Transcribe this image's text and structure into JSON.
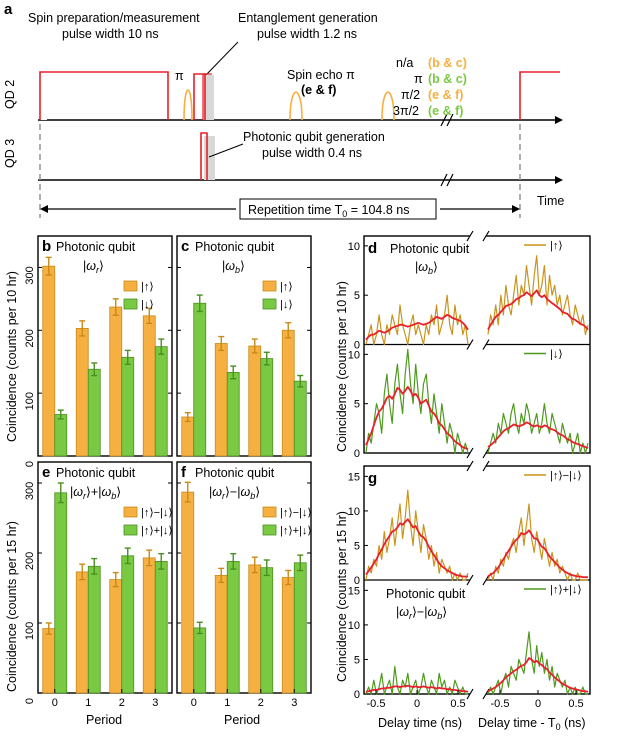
{
  "colors": {
    "orange": "#F5B041",
    "orange_edge": "#C98A1A",
    "green": "#7AC943",
    "green_edge": "#4A8F22",
    "red": "#E8202A",
    "gold_line": "#C8941E",
    "green_line": "#4E9A1E",
    "gray_shade": "#D8D8D8",
    "dash": "#999999"
  },
  "panel_a": {
    "letter": "a",
    "spin_prep_line1": "Spin preparation/measurement",
    "spin_prep_line2": "pulse width 10 ns",
    "ent_line1": "Entanglement generation",
    "ent_line2": "pulse width 1.2 ns",
    "pi_label": "π",
    "spin_echo_line1": "Spin echo π",
    "spin_echo_line2": "(e & f)",
    "legend": [
      {
        "angle": "n/a",
        "panels": "(b & c)",
        "color": "orange"
      },
      {
        "angle": "π",
        "panels": "(b & c)",
        "color": "green"
      },
      {
        "angle": "π/2",
        "panels": "(e & f)",
        "color": "orange"
      },
      {
        "angle": "3π/2",
        "panels": "(e & f)",
        "color": "green"
      }
    ],
    "qd2_label": "QD 2",
    "qd3_label": "QD 3",
    "photon_line1": "Photonic qubit generation",
    "photon_line2": "pulse width 0.4 ns",
    "repetition_label": "Repetition time T",
    "repetition_sub": "0",
    "repetition_value": " = 104.8 ns",
    "time_label": "Time"
  },
  "axis_titles": {
    "top_ylabel": "Coincidence (counts per 10 hr)",
    "bottom_ylabel": "Coincidence (counts per 15 hr)",
    "period_xlabel": "Period",
    "delay_xlabel": "Delay time (ns)",
    "delay_t0_xlabel": "Delay time - T",
    "delay_t0_sub": "0",
    "delay_t0_unit": " (ns)"
  },
  "chart_data": [
    {
      "id": "b",
      "type": "bar",
      "title_line1": "Photonic qubit",
      "title_ket": "ω",
      "title_ket_sub": "r",
      "categories": [
        "0",
        "1",
        "2",
        "3"
      ],
      "ylim": [
        0,
        350
      ],
      "yticks": [
        0,
        100,
        200,
        300
      ],
      "series": [
        {
          "name": "|↑⟩",
          "color": "orange",
          "values": [
            302,
            203,
            237,
            223
          ],
          "errors": [
            14,
            12,
            13,
            12
          ]
        },
        {
          "name": "|↓⟩",
          "color": "green",
          "values": [
            66,
            138,
            157,
            174
          ],
          "errors": [
            7,
            10,
            11,
            12
          ]
        }
      ]
    },
    {
      "id": "c",
      "type": "bar",
      "title_line1": "Photonic qubit",
      "title_ket": "ω",
      "title_ket_sub": "b",
      "categories": [
        "0",
        "1",
        "2",
        "3"
      ],
      "ylim": [
        0,
        350
      ],
      "yticks": [
        0,
        100,
        200,
        300
      ],
      "series": [
        {
          "name": "|↑⟩",
          "color": "orange",
          "values": [
            62,
            179,
            175,
            200
          ],
          "errors": [
            7,
            11,
            11,
            12
          ]
        },
        {
          "name": "|↓⟩",
          "color": "green",
          "values": [
            243,
            133,
            155,
            119
          ],
          "errors": [
            13,
            10,
            10,
            9
          ]
        }
      ]
    },
    {
      "id": "e",
      "type": "bar",
      "title_line1": "Photonic qubit",
      "title_ket_a": "ω",
      "title_ket_a_sub": "r",
      "title_op": "+",
      "title_ket_b": "ω",
      "title_ket_b_sub": "b",
      "categories": [
        "0",
        "1",
        "2",
        "3"
      ],
      "ylim": [
        0,
        330
      ],
      "yticks": [
        0,
        100,
        200,
        300
      ],
      "series": [
        {
          "name": "|↑⟩−|↓⟩",
          "color": "orange",
          "values": [
            92,
            173,
            162,
            193
          ],
          "errors": [
            8,
            11,
            10,
            11
          ]
        },
        {
          "name": "|↑⟩+|↓⟩",
          "color": "green",
          "values": [
            286,
            181,
            196,
            188
          ],
          "errors": [
            14,
            11,
            11,
            11
          ]
        }
      ]
    },
    {
      "id": "f",
      "type": "bar",
      "title_line1": "Photonic qubit",
      "title_ket_a": "ω",
      "title_ket_a_sub": "r",
      "title_op": "−",
      "title_ket_b": "ω",
      "title_ket_b_sub": "b",
      "categories": [
        "0",
        "1",
        "2",
        "3"
      ],
      "ylim": [
        0,
        330
      ],
      "yticks": [
        0,
        100,
        200,
        300
      ],
      "series": [
        {
          "name": "|↑⟩−|↓⟩",
          "color": "orange",
          "values": [
            287,
            168,
            183,
            165
          ],
          "errors": [
            14,
            10,
            11,
            10
          ]
        },
        {
          "name": "|↑⟩+|↓⟩",
          "color": "green",
          "values": [
            93,
            188,
            179,
            186
          ],
          "errors": [
            8,
            11,
            11,
            11
          ]
        }
      ]
    },
    {
      "id": "d",
      "type": "line",
      "title_line1": "Photonic qubit",
      "title_ket": "ω",
      "title_ket_sub": "b",
      "ylim": [
        0,
        10
      ],
      "yticks": [
        0,
        5,
        10
      ],
      "subpanels": [
        {
          "legend": "|↑⟩",
          "color": "gold_line",
          "raw_left": [
            0,
            1,
            2,
            0,
            1,
            3,
            1,
            0,
            2,
            1,
            3,
            2,
            1,
            4,
            2,
            1,
            0,
            2,
            3,
            1,
            2,
            1,
            0,
            2,
            1,
            3,
            2,
            4,
            1,
            2,
            3,
            5,
            2,
            1,
            4,
            2,
            3,
            1,
            2,
            0
          ],
          "fit_left": [
            0.5,
            0.8,
            1.0,
            1.0,
            1.2,
            1.4,
            1.3,
            1.2,
            1.3,
            1.5,
            1.7,
            1.8,
            1.9,
            2.0,
            2.0,
            1.9,
            1.8,
            1.9,
            2.0,
            2.1,
            2.2,
            2.1,
            2.0,
            2.1,
            2.2,
            2.4,
            2.6,
            2.8,
            2.7,
            2.6,
            2.8,
            3.0,
            2.9,
            2.7,
            2.6,
            2.5,
            2.4,
            2.2,
            1.9,
            1.5
          ],
          "raw_right": [
            1,
            3,
            2,
            4,
            2,
            5,
            3,
            6,
            4,
            3,
            5,
            7,
            4,
            6,
            5,
            8,
            6,
            4,
            7,
            9,
            5,
            6,
            8,
            4,
            7,
            5,
            6,
            4,
            5,
            3,
            4,
            5,
            3,
            2,
            4,
            3,
            2,
            3,
            1,
            2
          ],
          "fit_right": [
            1.5,
            2.0,
            2.4,
            2.8,
            3.0,
            3.3,
            3.6,
            3.9,
            4.0,
            4.1,
            4.3,
            4.6,
            4.7,
            4.9,
            5.0,
            5.3,
            5.1,
            4.9,
            5.2,
            5.5,
            5.0,
            4.8,
            5.0,
            4.6,
            4.4,
            4.2,
            4.0,
            3.8,
            3.6,
            3.3,
            3.2,
            3.1,
            2.8,
            2.6,
            2.5,
            2.3,
            2.1,
            2.0,
            1.8,
            1.5
          ]
        },
        {
          "legend": "|↓⟩",
          "color": "green_line",
          "raw_left": [
            0,
            2,
            1,
            3,
            5,
            4,
            2,
            6,
            8,
            5,
            3,
            7,
            9,
            6,
            4,
            8,
            11,
            7,
            5,
            9,
            6,
            4,
            7,
            8,
            5,
            3,
            6,
            4,
            2,
            5,
            3,
            1,
            3,
            2,
            0,
            2,
            1,
            0,
            1,
            0
          ],
          "fit_left": [
            0.8,
            1.4,
            2.0,
            2.8,
            3.6,
            4.2,
            4.5,
            5.0,
            5.6,
            5.8,
            5.5,
            6.0,
            6.6,
            6.4,
            6.0,
            6.3,
            6.7,
            6.3,
            5.8,
            6.0,
            5.6,
            5.0,
            5.2,
            5.4,
            4.8,
            4.2,
            4.0,
            3.6,
            3.0,
            2.8,
            2.4,
            2.0,
            1.8,
            1.5,
            1.2,
            1.0,
            0.8,
            0.6,
            0.5,
            0.4
          ],
          "raw_right": [
            0,
            1,
            2,
            1,
            3,
            2,
            4,
            3,
            2,
            4,
            5,
            3,
            2,
            4,
            3,
            5,
            4,
            2,
            3,
            4,
            2,
            3,
            5,
            3,
            2,
            4,
            3,
            2,
            1,
            3,
            2,
            1,
            2,
            0,
            1,
            2,
            0,
            1,
            0,
            1
          ],
          "fit_right": [
            0.6,
            0.8,
            1.0,
            1.3,
            1.6,
            1.9,
            2.2,
            2.4,
            2.5,
            2.7,
            2.9,
            2.8,
            2.7,
            2.8,
            2.9,
            3.1,
            3.0,
            2.8,
            2.7,
            2.8,
            2.7,
            2.6,
            2.8,
            2.7,
            2.5,
            2.4,
            2.3,
            2.1,
            1.9,
            1.8,
            1.6,
            1.4,
            1.3,
            1.1,
            1.0,
            0.9,
            0.8,
            0.7,
            0.6,
            0.5
          ]
        }
      ]
    },
    {
      "id": "g",
      "type": "line",
      "title_line1": "Photonic qubit",
      "title_ket_a": "ω",
      "title_ket_a_sub": "r",
      "title_op": "−",
      "title_ket_b": "ω",
      "title_ket_b_sub": "b",
      "ylim": [
        0,
        15
      ],
      "yticks": [
        0,
        5,
        10,
        15
      ],
      "xticks_left": [
        "-0.5",
        "0",
        "0.5"
      ],
      "xticks_right": [
        "-0.5",
        "0",
        "0.5"
      ],
      "subpanels": [
        {
          "legend": "|↑⟩−|↓⟩",
          "color": "gold_line",
          "raw_left": [
            0,
            2,
            1,
            3,
            2,
            5,
            3,
            7,
            4,
            6,
            9,
            5,
            8,
            11,
            6,
            9,
            13,
            8,
            5,
            10,
            7,
            4,
            8,
            6,
            3,
            5,
            2,
            4,
            1,
            3,
            2,
            1,
            2,
            0,
            1,
            0,
            1,
            0,
            0,
            1
          ],
          "fit_left": [
            0.8,
            1.3,
            1.8,
            2.4,
            3.0,
            3.8,
            4.4,
            5.2,
            5.8,
            6.4,
            7.0,
            7.2,
            7.6,
            8.2,
            8.0,
            8.4,
            8.8,
            8.2,
            7.6,
            7.8,
            7.0,
            6.4,
            6.2,
            5.6,
            4.8,
            4.2,
            3.6,
            3.0,
            2.4,
            2.0,
            1.7,
            1.4,
            1.2,
            1.0,
            0.8,
            0.7,
            0.6,
            0.5,
            0.5,
            0.5
          ],
          "raw_right": [
            0,
            1,
            0,
            2,
            1,
            3,
            2,
            4,
            3,
            5,
            6,
            4,
            7,
            9,
            5,
            8,
            11,
            6,
            4,
            7,
            5,
            3,
            6,
            4,
            2,
            4,
            2,
            3,
            1,
            2,
            1,
            0,
            1,
            0,
            0,
            1,
            0,
            0,
            0,
            0
          ],
          "fit_right": [
            0.5,
            0.8,
            1.0,
            1.4,
            1.8,
            2.4,
            3.0,
            3.6,
            4.2,
            4.8,
            5.4,
            5.8,
            6.2,
            6.8,
            6.6,
            6.8,
            7.2,
            6.6,
            6.0,
            6.0,
            5.4,
            4.8,
            4.6,
            4.0,
            3.4,
            3.0,
            2.6,
            2.2,
            1.8,
            1.5,
            1.2,
            1.0,
            0.8,
            0.7,
            0.6,
            0.5,
            0.5,
            0.4,
            0.4,
            0.4
          ]
        },
        {
          "legend": "|↑⟩+|↓⟩",
          "color": "green_line",
          "raw_left": [
            0,
            1,
            0,
            2,
            0,
            1,
            3,
            0,
            1,
            2,
            0,
            4,
            1,
            0,
            2,
            1,
            3,
            0,
            1,
            2,
            0,
            1,
            3,
            1,
            0,
            2,
            1,
            0,
            3,
            1,
            2,
            0,
            1,
            0,
            2,
            1,
            0,
            1,
            0,
            0
          ],
          "fit_left": [
            0.3,
            0.4,
            0.5,
            0.6,
            0.6,
            0.7,
            0.8,
            0.8,
            0.9,
            0.9,
            1.0,
            1.1,
            1.1,
            1.0,
            1.1,
            1.1,
            1.2,
            1.1,
            1.0,
            1.1,
            1.0,
            1.0,
            1.1,
            1.0,
            0.9,
            1.0,
            0.9,
            0.8,
            0.9,
            0.8,
            0.8,
            0.7,
            0.7,
            0.6,
            0.6,
            0.5,
            0.5,
            0.4,
            0.4,
            0.3
          ],
          "raw_right": [
            0,
            1,
            0,
            1,
            2,
            0,
            2,
            3,
            1,
            4,
            3,
            2,
            5,
            4,
            3,
            6,
            9,
            5,
            3,
            7,
            4,
            6,
            3,
            5,
            2,
            4,
            1,
            3,
            2,
            1,
            2,
            0,
            1,
            0,
            1,
            0,
            0,
            1,
            0,
            0
          ],
          "fit_right": [
            0.4,
            0.6,
            0.8,
            1.0,
            1.3,
            1.6,
            2.0,
            2.4,
            2.7,
            3.0,
            3.3,
            3.5,
            3.8,
            4.1,
            4.2,
            4.6,
            5.2,
            5.0,
            4.6,
            4.8,
            4.4,
            4.2,
            3.8,
            3.6,
            3.1,
            2.8,
            2.4,
            2.1,
            1.8,
            1.5,
            1.3,
            1.1,
            0.9,
            0.8,
            0.7,
            0.6,
            0.5,
            0.4,
            0.4,
            0.3
          ]
        }
      ]
    }
  ]
}
